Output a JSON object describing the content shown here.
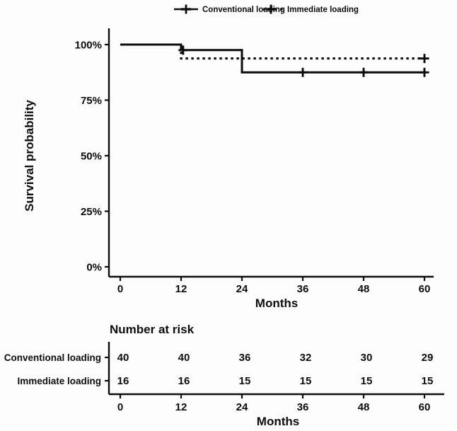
{
  "figure": {
    "ink_color": "#0d0d0d",
    "background_color": "#fcfcfc"
  },
  "legend": {
    "items": [
      {
        "label": "Conventional loading",
        "line_style": "solid",
        "marker": "plus-cross"
      },
      {
        "label": "Immediate loading",
        "line_style": "dashed",
        "marker": "plus-cross"
      }
    ]
  },
  "chart_data": {
    "type": "line",
    "subtype": "kaplan-meier-step-curve",
    "title": "",
    "xlabel": "Months",
    "ylabel": "Survival probability",
    "xlim": [
      0,
      60
    ],
    "ylim": [
      0,
      100
    ],
    "x_ticks": [
      0,
      12,
      24,
      36,
      48,
      60
    ],
    "y_ticks": [
      100,
      75,
      50,
      25,
      0
    ],
    "y_tick_suffix": "%",
    "grid": false,
    "legend_position": "top",
    "series": [
      {
        "name": "Conventional loading",
        "line_style": "solid",
        "color": "#0d0d0d",
        "points": [
          [
            0,
            100
          ],
          [
            12,
            100
          ],
          [
            12,
            97.5
          ],
          [
            24,
            97.5
          ],
          [
            24,
            87.5
          ],
          [
            60,
            87.5
          ]
        ],
        "censor_marks": [
          [
            12.4,
            97.5
          ],
          [
            36,
            87.5
          ],
          [
            48,
            87.5
          ],
          [
            60,
            87.5
          ]
        ]
      },
      {
        "name": "Immediate loading",
        "line_style": "dashed",
        "color": "#0d0d0d",
        "points": [
          [
            0,
            100
          ],
          [
            12,
            100
          ],
          [
            12,
            93.75
          ],
          [
            60,
            93.75
          ]
        ],
        "censor_marks": [
          [
            60,
            93.75
          ]
        ]
      }
    ]
  },
  "risk_table": {
    "title": "Number at risk",
    "xlabel": "Months",
    "x_ticks": [
      0,
      12,
      24,
      36,
      48,
      60
    ],
    "rows": [
      {
        "label": "Conventional loading",
        "values": [
          40,
          40,
          36,
          32,
          30,
          29
        ]
      },
      {
        "label": "Immediate loading",
        "values": [
          16,
          16,
          15,
          15,
          15,
          15
        ]
      }
    ]
  }
}
